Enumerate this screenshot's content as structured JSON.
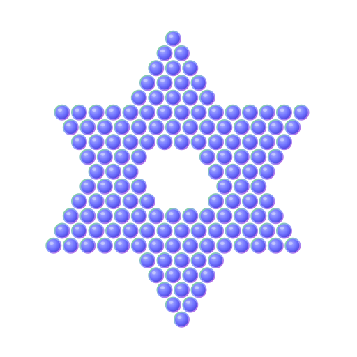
{
  "figure": {
    "subject": "star-of-david-icon",
    "colors": {
      "background": "#ffffff",
      "bead_fill": "#6f72ff",
      "bead_highlight": "#a9b0ff",
      "bead_shadow": "#4a3fd6",
      "bead_rim_green": "#7fe08a",
      "bead_rim_purple": "#c060e0"
    }
  }
}
